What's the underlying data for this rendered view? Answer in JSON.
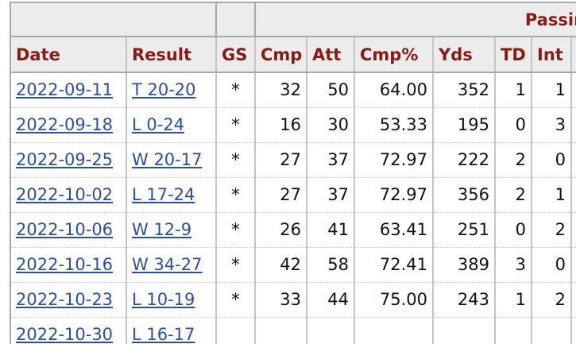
{
  "over_header": {
    "group_label": "Passing"
  },
  "columns": [
    "Date",
    "Result",
    "GS",
    "Cmp",
    "Att",
    "Cmp%",
    "Yds",
    "TD",
    "Int"
  ],
  "rows": [
    {
      "date": "2022-09-11",
      "result": "T 20-20",
      "gs": "*",
      "cmp": "32",
      "att": "50",
      "pct": "64.00",
      "yds": "352",
      "td": "1",
      "int": "1"
    },
    {
      "date": "2022-09-18",
      "result": "L 0-24",
      "gs": "*",
      "cmp": "16",
      "att": "30",
      "pct": "53.33",
      "yds": "195",
      "td": "0",
      "int": "3"
    },
    {
      "date": "2022-09-25",
      "result": "W 20-17",
      "gs": "*",
      "cmp": "27",
      "att": "37",
      "pct": "72.97",
      "yds": "222",
      "td": "2",
      "int": "0"
    },
    {
      "date": "2022-10-02",
      "result": "L 17-24",
      "gs": "*",
      "cmp": "27",
      "att": "37",
      "pct": "72.97",
      "yds": "356",
      "td": "2",
      "int": "1"
    },
    {
      "date": "2022-10-06",
      "result": "W 12-9",
      "gs": "*",
      "cmp": "26",
      "att": "41",
      "pct": "63.41",
      "yds": "251",
      "td": "0",
      "int": "2"
    },
    {
      "date": "2022-10-16",
      "result": "W 34-27",
      "gs": "*",
      "cmp": "42",
      "att": "58",
      "pct": "72.41",
      "yds": "389",
      "td": "3",
      "int": "0"
    },
    {
      "date": "2022-10-23",
      "result": "L 10-19",
      "gs": "*",
      "cmp": "33",
      "att": "44",
      "pct": "75.00",
      "yds": "243",
      "td": "1",
      "int": "2"
    },
    {
      "date": "2022-10-30",
      "result": "L 16-17",
      "gs": "",
      "cmp": "",
      "att": "",
      "pct": "",
      "yds": "",
      "td": "",
      "int": ""
    }
  ],
  "colors": {
    "header_text": "#8b1a14",
    "link": "#2b4fa6",
    "header_bg": "#ececec"
  }
}
